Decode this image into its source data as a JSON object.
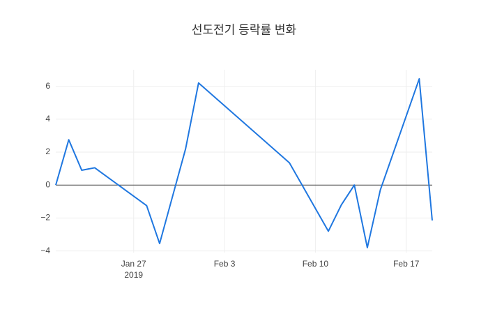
{
  "chart_data": {
    "type": "line",
    "title": "선도전기 등락률 변화",
    "x": [
      "2019-01-21",
      "2019-01-22",
      "2019-01-23",
      "2019-01-24",
      "2019-01-28",
      "2019-01-29",
      "2019-01-31",
      "2019-02-01",
      "2019-02-08",
      "2019-02-11",
      "2019-02-12",
      "2019-02-13",
      "2019-02-14",
      "2019-02-15",
      "2019-02-18",
      "2019-02-19"
    ],
    "series": [
      {
        "color": "#1f77e0",
        "values": [
          0,
          2.75,
          0.9,
          1.05,
          -1.25,
          -3.55,
          2.2,
          6.2,
          1.35,
          -2.8,
          -1.2,
          0,
          -3.8,
          -0.3,
          6.45,
          -2.15
        ]
      }
    ],
    "xlim": [
      "2019-01-21",
      "2019-02-19"
    ],
    "xticks": [
      {
        "value": "2019-01-27",
        "label": [
          "Jan 27",
          "2019"
        ]
      },
      {
        "value": "2019-02-03",
        "label": [
          "Feb 3"
        ]
      },
      {
        "value": "2019-02-10",
        "label": [
          "Feb 10"
        ]
      },
      {
        "value": "2019-02-17",
        "label": [
          "Feb 17"
        ]
      }
    ],
    "ylim": [
      -4.1,
      7.0
    ],
    "yticks": [
      {
        "value": -4,
        "label": "−4"
      },
      {
        "value": -2,
        "label": "−2"
      },
      0,
      2,
      4,
      6
    ],
    "grid": true
  }
}
